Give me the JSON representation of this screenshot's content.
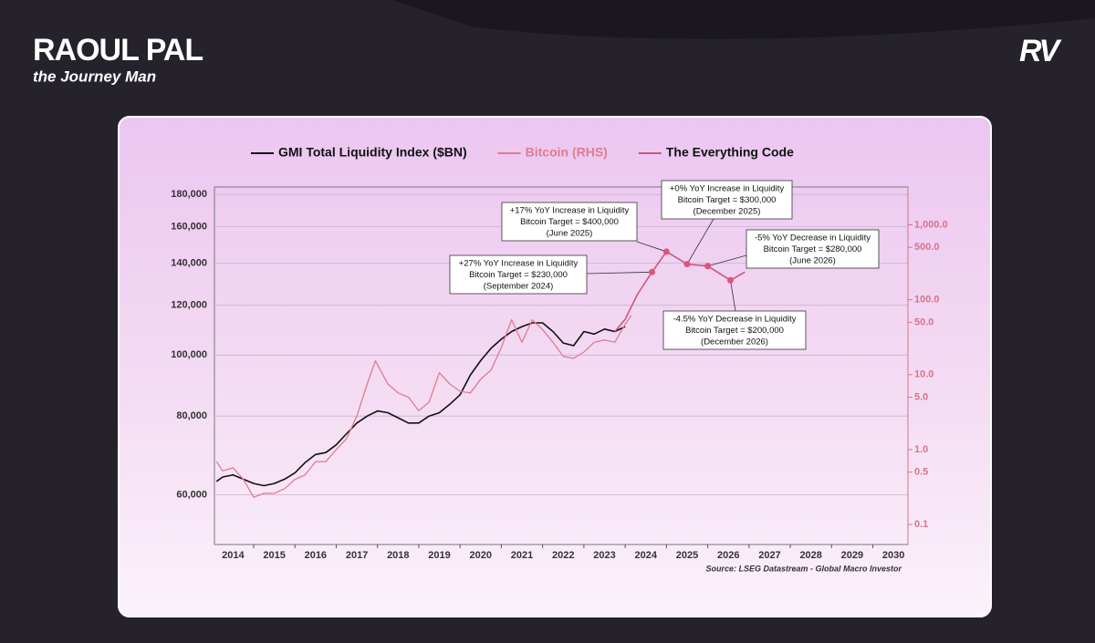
{
  "header": {
    "brand": "RAOUL PAL",
    "tagline": "the Journey Man",
    "logo": "RV"
  },
  "chart_data": {
    "type": "line",
    "source": "Source: LSEG Datastream - Global Macro Investor",
    "xlim": [
      2014.05,
      2030.85
    ],
    "xticks": [
      2014,
      2015,
      2016,
      2017,
      2018,
      2019,
      2020,
      2021,
      2022,
      2023,
      2024,
      2025,
      2026,
      2027,
      2028,
      2029,
      2030
    ],
    "ylim": [
      50000,
      185000
    ],
    "log": true,
    "yticks": [
      {
        "value": 60000,
        "label": "60,000"
      },
      {
        "value": 80000,
        "label": "80,000"
      },
      {
        "value": 100000,
        "label": "100,000"
      },
      {
        "value": 120000,
        "label": "120,000"
      },
      {
        "value": 140000,
        "label": "140,000"
      },
      {
        "value": 160000,
        "label": "160,000"
      },
      {
        "value": 180000,
        "label": "180,000"
      }
    ],
    "y2lim": [
      0.054,
      3200
    ],
    "y2log": true,
    "y2ticks": [
      0.1,
      0.5,
      {
        "value": 1,
        "label": "1.0"
      },
      {
        "value": 5,
        "label": "5.0"
      },
      {
        "value": 10,
        "label": "10.0"
      },
      {
        "value": 50,
        "label": "50.0"
      },
      {
        "value": 100,
        "label": "100.0"
      },
      {
        "value": 500,
        "label": "500.0"
      },
      {
        "value": 1000,
        "label": "1,000.0"
      }
    ],
    "grid": true,
    "legend": "top",
    "series": [
      {
        "name": "GMI Total Liquidity Index ($BN)",
        "color": "#111111",
        "x": [
          2014.1,
          2014.25,
          2014.5,
          2014.75,
          2015,
          2015.25,
          2015.5,
          2015.75,
          2016,
          2016.25,
          2016.5,
          2016.75,
          2017,
          2017.25,
          2017.5,
          2017.75,
          2018,
          2018.25,
          2018.5,
          2018.75,
          2019,
          2019.25,
          2019.5,
          2019.75,
          2020,
          2020.25,
          2020.5,
          2020.75,
          2021,
          2021.25,
          2021.5,
          2021.75,
          2022,
          2022.25,
          2022.5,
          2022.75,
          2023,
          2023.25,
          2023.5,
          2023.75,
          2024
        ],
        "values": [
          63000,
          64000,
          64500,
          63500,
          62500,
          62000,
          62500,
          63500,
          65000,
          67500,
          69500,
          70000,
          72000,
          75000,
          78000,
          80000,
          81500,
          81000,
          79500,
          78000,
          78000,
          80000,
          81000,
          83500,
          86500,
          93000,
          98000,
          102500,
          106000,
          109000,
          111000,
          112500,
          112500,
          109000,
          104500,
          103500,
          109000,
          108000,
          110000,
          109000,
          111000
        ]
      },
      {
        "name": "Bitcoin (RHS)",
        "color": "#e07c8f",
        "axis": "y2",
        "x": [
          2014.1,
          2014.25,
          2014.5,
          2014.75,
          2015,
          2015.25,
          2015.5,
          2015.75,
          2016,
          2016.25,
          2016.5,
          2016.75,
          2017,
          2017.25,
          2017.5,
          2017.75,
          2017.95,
          2018.25,
          2018.5,
          2018.75,
          2019,
          2019.25,
          2019.5,
          2019.75,
          2020,
          2020.25,
          2020.5,
          2020.75,
          2021,
          2021.25,
          2021.5,
          2021.75,
          2022,
          2022.25,
          2022.5,
          2022.75,
          2023,
          2023.25,
          2023.5,
          2023.75,
          2024,
          2024.15
        ],
        "values": [
          0.69,
          0.52,
          0.57,
          0.4,
          0.23,
          0.26,
          0.26,
          0.3,
          0.4,
          0.46,
          0.69,
          0.69,
          1,
          1.4,
          2.8,
          7.5,
          15.3,
          7.5,
          5.7,
          5,
          3.3,
          4.3,
          10.6,
          7.5,
          6,
          5.7,
          8.7,
          11.5,
          23,
          54,
          27,
          54,
          40,
          27,
          17.5,
          16.5,
          20,
          27,
          29,
          27,
          47,
          62
        ]
      },
      {
        "name": "The Everything Code",
        "color": "#c9587a",
        "x": [
          2023.75,
          2024,
          2024.3,
          2024.65,
          2025,
          2025.5,
          2026,
          2026.55,
          2026.9
        ],
        "values": [
          109000,
          114000,
          125000,
          135500,
          146000,
          139500,
          138500,
          131500,
          135500
        ]
      }
    ],
    "annotations": [
      {
        "lines": [
          "+27% YoY Increase in Liquidity",
          "Bitcoin Target = $230,000",
          "(September 2024)"
        ]
      },
      {
        "lines": [
          "+17% YoY Increase in Liquidity",
          "Bitcoin Target = $400,000",
          "(June 2025)"
        ]
      },
      {
        "lines": [
          "+0% YoY Increase in Liquidity",
          "Bitcoin Target = $300,000",
          "(December 2025)"
        ]
      },
      {
        "lines": [
          "-5% YoY Decrease in Liquidity",
          "Bitcoin Target = $280,000",
          "(June 2026)"
        ]
      },
      {
        "lines": [
          "-4.5% YoY Decrease in Liquidity",
          "Bitcoin Target = $200,000",
          "(December 2026)"
        ]
      }
    ]
  }
}
